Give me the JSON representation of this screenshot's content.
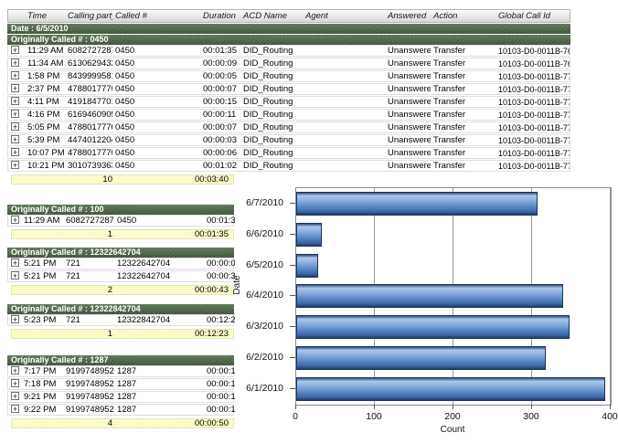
{
  "colors": {
    "group_header_green": "#46593f",
    "summary_yellow": "#ffffca",
    "bar_blue": "#5b8ac8",
    "header_gray": "#d7d7d7"
  },
  "icons": {
    "expand_glyph": "+"
  },
  "table": {
    "columns": [
      "Time",
      "Calling party #",
      "Called #",
      "Duration",
      "ACD Name",
      "Agent",
      "Answered",
      "Action",
      "Global Call Id"
    ],
    "date_header": "Date : 6/5/2010",
    "groups": [
      {
        "header": "Originally Called # : 0450",
        "wide": true,
        "rows": [
          {
            "time": "11:29 AM",
            "calling": "6082727287",
            "called": "0450",
            "duration": "00:01:35",
            "acd": "DID_Routing",
            "agent": "",
            "answered": "Unanswered",
            "action": "Transfer",
            "gcid": "10103-D0-0011B-768"
          },
          {
            "time": "11:34 AM",
            "calling": "6130629432",
            "called": "0450",
            "duration": "00:00:09",
            "acd": "DID_Routing",
            "agent": "",
            "answered": "Unanswered",
            "action": "Transfer",
            "gcid": "10103-D0-0011B-76F"
          },
          {
            "time": "1:58 PM",
            "calling": "8439999581",
            "called": "0450",
            "duration": "00:00:05",
            "acd": "DID_Routing",
            "agent": "",
            "answered": "Unanswered",
            "action": "Transfer",
            "gcid": "10103-D0-0011B-770"
          },
          {
            "time": "2:37 PM",
            "calling": "4788017770",
            "called": "0450",
            "duration": "00:00:07",
            "acd": "DID_Routing",
            "agent": "",
            "answered": "Unanswered",
            "action": "Transfer",
            "gcid": "10103-D0-0011B-771"
          },
          {
            "time": "4:11 PM",
            "calling": "4191847701",
            "called": "0450",
            "duration": "00:00:15",
            "acd": "DID_Routing",
            "agent": "",
            "answered": "Unanswered",
            "action": "Transfer",
            "gcid": "10103-D0-0011B-772"
          },
          {
            "time": "4:16 PM",
            "calling": "6169460905",
            "called": "0450",
            "duration": "00:00:11",
            "acd": "DID_Routing",
            "agent": "",
            "answered": "Unanswered",
            "action": "Transfer",
            "gcid": "10103-D0-0011B-773"
          },
          {
            "time": "5:05 PM",
            "calling": "4788017770",
            "called": "0450",
            "duration": "00:00:07",
            "acd": "DID_Routing",
            "agent": "",
            "answered": "Unanswered",
            "action": "Transfer",
            "gcid": "10103-D0-0011B-774"
          },
          {
            "time": "5:39 PM",
            "calling": "4474012204",
            "called": "0450",
            "duration": "00:00:03",
            "acd": "DID_Routing",
            "agent": "",
            "answered": "Unanswered",
            "action": "Transfer",
            "gcid": "10103-D0-0011B-778"
          },
          {
            "time": "10:07 PM",
            "calling": "4788017770",
            "called": "0450",
            "duration": "00:00:06",
            "acd": "DID_Routing",
            "agent": "",
            "answered": "Unanswered",
            "action": "Transfer",
            "gcid": "10103-D0-0011B-77E"
          },
          {
            "time": "10:21 PM",
            "calling": "3010739363",
            "called": "0450",
            "duration": "00:01:02",
            "acd": "DID_Routing",
            "agent": "",
            "answered": "Unanswered",
            "action": "Transfer",
            "gcid": "10103-D0-0011B-77F"
          }
        ],
        "summary": {
          "count": "10",
          "total": "00:03:40"
        }
      },
      {
        "header": "Originally Called # : 100",
        "wide": false,
        "rows": [
          {
            "time": "11:29 AM",
            "calling": "6082727287",
            "called": "0450",
            "duration": "00:01:35"
          }
        ],
        "summary": {
          "count": "1",
          "total": "00:01:35"
        }
      },
      {
        "header": "Originally Called # : 12322642704",
        "wide": false,
        "rows": [
          {
            "time": "5:21 PM",
            "calling": "721",
            "called": "12322642704",
            "duration": "00:00:09"
          },
          {
            "time": "5:21 PM",
            "calling": "721",
            "called": "12322642704",
            "duration": "00:00:34"
          }
        ],
        "summary": {
          "count": "2",
          "total": "00:00:43"
        }
      },
      {
        "header": "Originally Called # : 12322842704",
        "wide": false,
        "rows": [
          {
            "time": "5:23 PM",
            "calling": "721",
            "called": "12322842704",
            "duration": "00:12:23"
          }
        ],
        "summary": {
          "count": "1",
          "total": "00:12:23"
        }
      },
      {
        "header": "Originally Called # : 1287",
        "wide": false,
        "rows": [
          {
            "time": "7:17 PM",
            "calling": "9199748952",
            "called": "1287",
            "duration": "00:00:13"
          },
          {
            "time": "7:18 PM",
            "calling": "9199748952",
            "called": "1287",
            "duration": "00:00:12"
          },
          {
            "time": "9:21 PM",
            "calling": "9199748952",
            "called": "1287",
            "duration": "00:00:14"
          },
          {
            "time": "9:22 PM",
            "calling": "9199748952",
            "called": "1287",
            "duration": "00:00:11"
          }
        ],
        "summary": {
          "count": "4",
          "total": "00:00:50"
        }
      }
    ]
  },
  "chart_data": {
    "type": "bar",
    "orientation": "horizontal",
    "categories": [
      "6/7/2010",
      "6/6/2010",
      "6/5/2010",
      "6/4/2010",
      "6/3/2010",
      "6/2/2010",
      "6/1/2010"
    ],
    "values": [
      307,
      33,
      28,
      340,
      348,
      318,
      393
    ],
    "title": "",
    "xlabel": "Count",
    "ylabel": "Date",
    "xlim": [
      0,
      400
    ],
    "xticks": [
      0,
      100,
      200,
      300,
      400
    ],
    "grid": true,
    "legend": "none",
    "bar_color": "#5b8ac8"
  }
}
